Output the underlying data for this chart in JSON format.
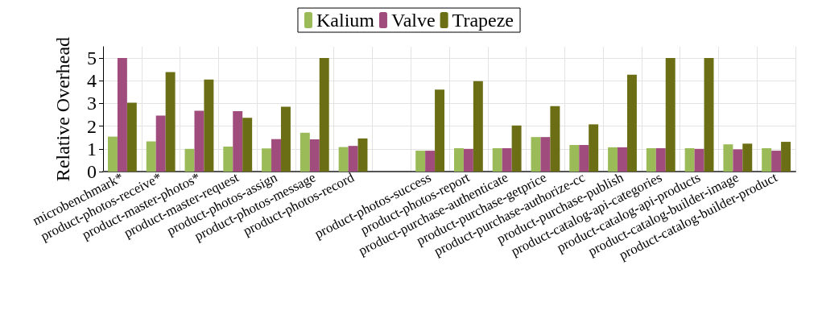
{
  "chart_data": {
    "type": "bar",
    "ylabel": "Relative Overhead",
    "categories": [
      "microbenchmark*",
      "product-photos-receive*",
      "product-master-photos*",
      "product-master-request",
      "product-photos-assign",
      "product-photos-message",
      "product-photos-record",
      null,
      "product-photos-success",
      "product-photos-report",
      "product-purchase-authenticate",
      "product-purchase-getprice",
      "product-purchase-authorize-cc",
      "product-purchase-publish",
      "product-catalog-api-categories",
      "product-catalog-api-products",
      "product-catalog-builder-image",
      "product-catalog-builder-product"
    ],
    "series": [
      {
        "name": "Kalium",
        "color": "#9bbb59",
        "values": [
          1.54,
          1.33,
          1.0,
          1.1,
          1.02,
          1.71,
          1.08,
          null,
          0.92,
          1.03,
          1.03,
          1.52,
          1.17,
          1.07,
          1.03,
          1.03,
          1.2,
          1.03
        ]
      },
      {
        "name": "Valve",
        "color": "#a04d7e",
        "values": [
          5.0,
          2.47,
          2.68,
          2.66,
          1.43,
          1.42,
          1.13,
          null,
          0.92,
          1.0,
          1.03,
          1.52,
          1.17,
          1.07,
          1.03,
          1.0,
          0.98,
          0.92
        ]
      },
      {
        "name": "Trapeze",
        "color": "#6b6e14",
        "values": [
          3.03,
          4.38,
          4.05,
          2.37,
          2.86,
          5.0,
          1.46,
          null,
          3.61,
          3.98,
          2.03,
          2.88,
          2.08,
          4.27,
          5.0,
          5.0,
          1.23,
          1.31
        ]
      }
    ],
    "ylim": [
      0,
      5.5
    ],
    "yticks": [
      0,
      1,
      2,
      3,
      4,
      5
    ],
    "grid": true,
    "legend": "top"
  }
}
